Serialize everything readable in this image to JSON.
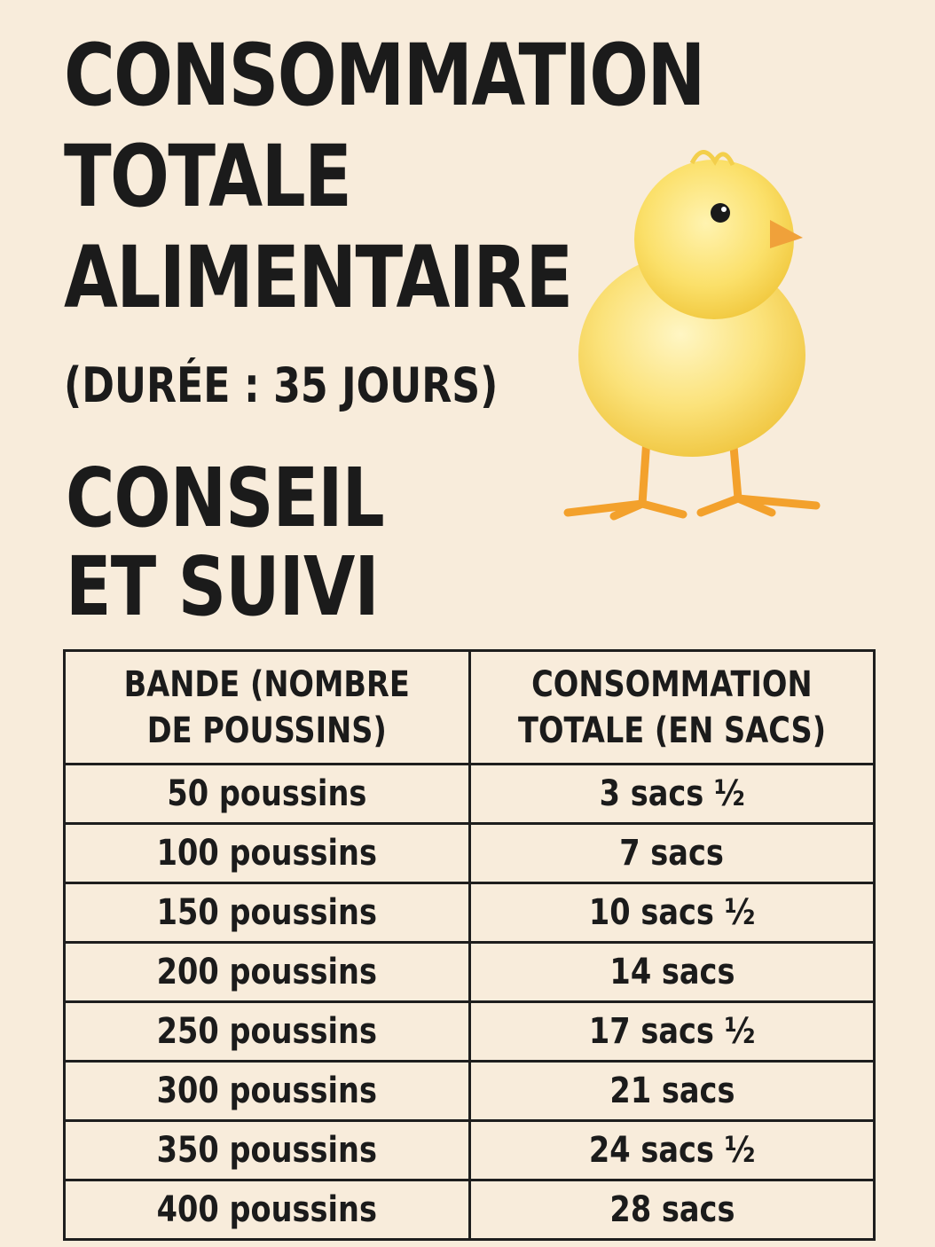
{
  "header": {
    "title_line1": "CONSOMMATION",
    "title_line2": "TOTALE",
    "title_line3": "ALIMENTAIRE",
    "duration": "(DURÉE : 35 JOURS)",
    "advice_line1": "CONSEIL",
    "advice_line2": "ET SUIVI"
  },
  "table": {
    "col1_line1": "BANDE (NOMBRE",
    "col1_line2": "DE POUSSINS)",
    "col2_line1": "CONSOMMATION",
    "col2_line2": "TOTALE (EN SACS)",
    "rows": [
      {
        "chicks": "50 poussins",
        "bags": "3 sacs ½"
      },
      {
        "chicks": "100 poussins",
        "bags": "7 sacs"
      },
      {
        "chicks": "150 poussins",
        "bags": "10 sacs ½"
      },
      {
        "chicks": "200 poussins",
        "bags": "14 sacs"
      },
      {
        "chicks": "250 poussins",
        "bags": "17 sacs ½"
      },
      {
        "chicks": "300 poussins",
        "bags": "21 sacs"
      },
      {
        "chicks": "350 poussins",
        "bags": "24 sacs ½"
      },
      {
        "chicks": "400 poussins",
        "bags": "28 sacs"
      }
    ]
  },
  "illustration": {
    "icon": "chick-icon",
    "body_color": "#f7d94a",
    "leg_color": "#f3a12c"
  }
}
